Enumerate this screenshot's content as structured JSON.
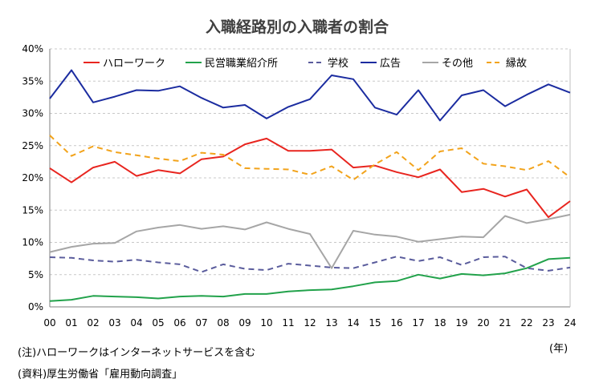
{
  "chart_data": {
    "type": "line",
    "title": "入職経路別の入職者の割合",
    "xlabel": "",
    "ylabel": "",
    "x_unit": "(年)",
    "categories": [
      "00",
      "01",
      "02",
      "03",
      "04",
      "05",
      "06",
      "07",
      "08",
      "09",
      "10",
      "11",
      "12",
      "13",
      "14",
      "15",
      "16",
      "17",
      "18",
      "19",
      "20",
      "21",
      "22",
      "23",
      "24"
    ],
    "y_ticks": [
      "0%",
      "5%",
      "10%",
      "15%",
      "20%",
      "25%",
      "30%",
      "35%",
      "40%"
    ],
    "ylim": [
      0,
      40
    ],
    "grid": "horizontal dashed",
    "legend_position": "top",
    "series": [
      {
        "name": "ハローワーク",
        "color": "#e8251f",
        "style": "solid",
        "values": [
          21.5,
          19.3,
          21.6,
          22.5,
          20.3,
          21.2,
          20.7,
          22.9,
          23.3,
          25.2,
          26.1,
          24.2,
          24.2,
          24.4,
          21.6,
          21.9,
          20.9,
          20.1,
          21.3,
          17.8,
          18.3,
          17.1,
          18.2,
          13.9,
          16.4
        ]
      },
      {
        "name": "民営職業紹介所",
        "color": "#22a24b",
        "style": "solid",
        "values": [
          0.9,
          1.1,
          1.7,
          1.6,
          1.5,
          1.3,
          1.6,
          1.7,
          1.6,
          2.0,
          2.0,
          2.4,
          2.6,
          2.7,
          3.2,
          3.8,
          4.0,
          5.0,
          4.4,
          5.1,
          4.9,
          5.2,
          6.0,
          7.4,
          7.6
        ]
      },
      {
        "name": "学校",
        "color": "#5a5c9c",
        "style": "dashed",
        "values": [
          7.7,
          7.6,
          7.2,
          7.0,
          7.3,
          6.9,
          6.6,
          5.4,
          6.6,
          5.9,
          5.7,
          6.7,
          6.4,
          6.1,
          6.0,
          6.9,
          7.8,
          7.1,
          7.7,
          6.5,
          7.7,
          7.8,
          6.0,
          5.6,
          6.1
        ]
      },
      {
        "name": "広告",
        "color": "#1b2ca0",
        "style": "solid",
        "values": [
          32.3,
          36.7,
          31.7,
          32.6,
          33.6,
          33.5,
          34.2,
          32.4,
          30.9,
          31.3,
          29.2,
          31.0,
          32.2,
          35.9,
          35.3,
          30.9,
          29.8,
          33.6,
          28.9,
          32.8,
          33.6,
          31.1,
          32.9,
          34.5,
          33.2
        ]
      },
      {
        "name": "その他",
        "color": "#a6a6a6",
        "style": "solid",
        "values": [
          8.5,
          9.3,
          9.8,
          9.9,
          11.7,
          12.3,
          12.7,
          12.1,
          12.5,
          12.0,
          13.1,
          12.1,
          11.3,
          6.0,
          11.8,
          11.2,
          10.9,
          10.1,
          10.5,
          10.9,
          10.8,
          14.1,
          13.0,
          13.6,
          14.3
        ]
      },
      {
        "name": "縁故",
        "color": "#f2a31b",
        "style": "dashed",
        "values": [
          26.6,
          23.4,
          24.9,
          24.0,
          23.5,
          23.0,
          22.6,
          23.9,
          23.6,
          21.5,
          21.4,
          21.3,
          20.5,
          21.8,
          19.7,
          22.1,
          24.0,
          21.2,
          24.1,
          24.6,
          22.2,
          21.8,
          21.2,
          22.6,
          20.1
        ]
      }
    ]
  },
  "notes": {
    "note1": "(注)ハローワークはインターネットサービスを含む",
    "note2": "(資料)厚生労働省「雇用動向調査」"
  }
}
